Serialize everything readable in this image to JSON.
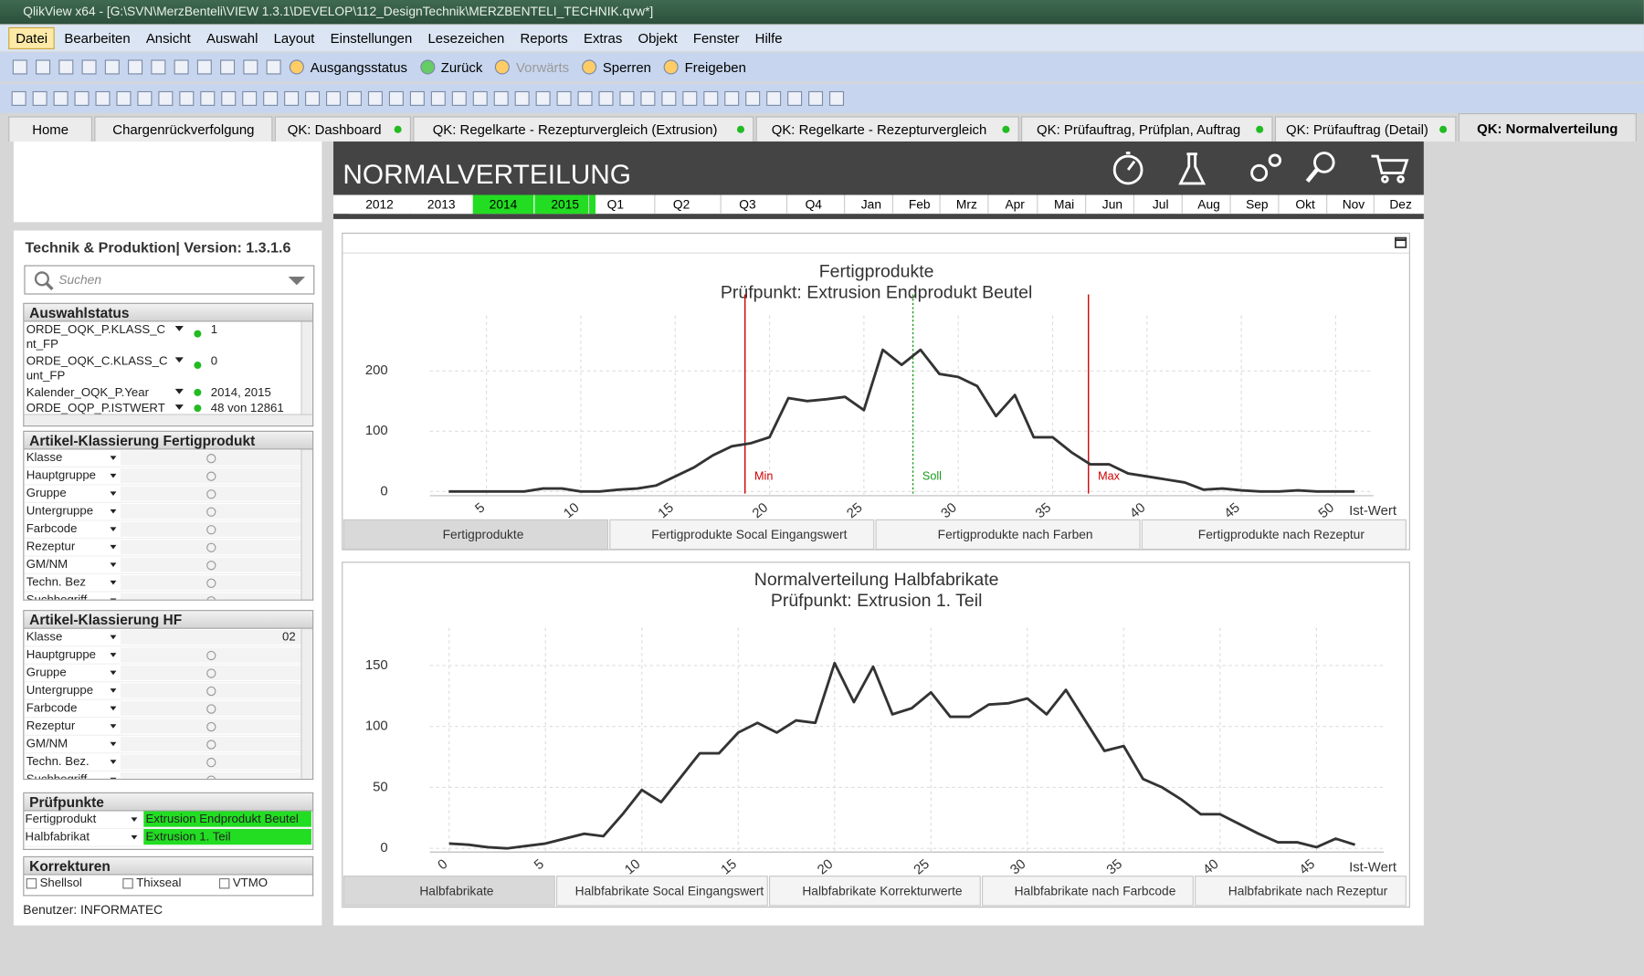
{
  "window_title": "QlikView x64 - [G:\\SVN\\MerzBenteli\\VIEW 1.3.1\\DEVELOP\\112_DesignTechnik\\MERZBENTELI_TECHNIK.qvw*]",
  "menu": [
    "Datei",
    "Bearbeiten",
    "Ansicht",
    "Auswahl",
    "Layout",
    "Einstellungen",
    "Lesezeichen",
    "Reports",
    "Extras",
    "Objekt",
    "Fenster",
    "Hilfe"
  ],
  "toolbar": [
    "Ausgangsstatus",
    "Zurück",
    "Vorwärts",
    "Sperren",
    "Freigeben"
  ],
  "tabs": [
    "Home",
    "Chargenrückverfolgung",
    "QK: Dashboard",
    "QK: Regelkarte - Rezepturvergleich (Extrusion)",
    "QK: Regelkarte - Rezepturvergleich",
    "QK: Prüfauftrag, Prüfplan, Auftrag",
    "QK: Prüfauftrag (Detail)",
    "QK: Normalverteilung"
  ],
  "active_tab": 7,
  "header": {
    "title": "NORMALVERTEILUNG",
    "years": [
      "2012",
      "2013",
      "2014",
      "2015"
    ],
    "selected_years": [
      2,
      3
    ],
    "periods": [
      "Q1",
      "Q2",
      "Q3",
      "Q4",
      "Jan",
      "Feb",
      "Mrz",
      "Apr",
      "Mai",
      "Jun",
      "Jul",
      "Aug",
      "Sep",
      "Okt",
      "Nov",
      "Dez"
    ]
  },
  "sidebar": {
    "title": "Technik & Produktion| Version: 1.3.1.6",
    "search": "Suchen",
    "auswahlstatus": {
      "header": "Auswahlstatus",
      "rows": [
        {
          "field": "ORDE_OQK_P.KLASS_C\nnt_FP",
          "value": "1"
        },
        {
          "field": "ORDE_OQK_C.KLASS_C\nunt_FP",
          "value": "0"
        },
        {
          "field": "Kalender_OQK_P.Year",
          "value": "2014, 2015"
        },
        {
          "field": "ORDE_OQP_P.ISTWERT",
          "value": "48 von 12861"
        }
      ]
    },
    "artikel_fp": {
      "header": "Artikel-Klassierung  Fertigprodukt",
      "rows": [
        {
          "field": "Klasse"
        },
        {
          "field": "Hauptgruppe"
        },
        {
          "field": "Gruppe"
        },
        {
          "field": "Untergruppe"
        },
        {
          "field": "Farbcode"
        },
        {
          "field": "Rezeptur"
        },
        {
          "field": "GM/NM"
        },
        {
          "field": "Techn. Bez"
        },
        {
          "field": "Suchbegriff"
        }
      ]
    },
    "artikel_hf": {
      "header": "Artikel-Klassierung HF",
      "rows": [
        {
          "field": "Klasse",
          "value": "02"
        },
        {
          "field": "Hauptgruppe"
        },
        {
          "field": "Gruppe"
        },
        {
          "field": "Untergruppe"
        },
        {
          "field": "Farbcode"
        },
        {
          "field": "Rezeptur"
        },
        {
          "field": "GM/NM"
        },
        {
          "field": "Techn. Bez."
        },
        {
          "field": "Suchbegriff"
        }
      ]
    },
    "pruefpunkte": {
      "header": "Prüfpunkte",
      "rows": [
        {
          "field": "Fertigprodukt",
          "value": "Extrusion Endprodukt Beutel"
        },
        {
          "field": "Halbfabrikat",
          "value": "Extrusion 1. Teil"
        }
      ]
    },
    "korrekturen": {
      "header": "Korrekturen",
      "options": [
        "Shellsol",
        "Thixseal",
        "VTMO"
      ]
    },
    "user": "Benutzer: INFORMATEC"
  },
  "chart_data": [
    {
      "type": "line",
      "title": "Fertigprodukte",
      "subtitle": "Prüfpunkt: Extrusion Endprodukt Beutel",
      "x_label": "Ist-Wert",
      "color": "#333333",
      "x": [
        3,
        4,
        5,
        6,
        7,
        8,
        9,
        10,
        11,
        12,
        13,
        14,
        15,
        16,
        17,
        18,
        19,
        20,
        21,
        22,
        23,
        24,
        25,
        26,
        27,
        28,
        29,
        30,
        31,
        32,
        33,
        34,
        35,
        36,
        37,
        38,
        39,
        40,
        41,
        42,
        43,
        44,
        45,
        46,
        47,
        48,
        49,
        50,
        51
      ],
      "values": [
        0,
        0,
        0,
        0,
        0,
        5,
        5,
        0,
        0,
        3,
        5,
        10,
        25,
        40,
        60,
        75,
        80,
        90,
        155,
        150,
        153,
        157,
        135,
        235,
        210,
        235,
        195,
        190,
        175,
        125,
        160,
        90,
        90,
        65,
        45,
        45,
        30,
        25,
        20,
        15,
        3,
        5,
        2,
        0,
        0,
        2,
        0,
        0,
        0
      ],
      "xlim": [
        2,
        52
      ],
      "ylim": [
        -7,
        292
      ],
      "xticks": [
        5,
        10,
        15,
        20,
        25,
        30,
        35,
        40,
        45,
        50
      ],
      "yticks": [
        0,
        100,
        200
      ],
      "grid": true,
      "annotations": [
        {
          "label": "Min",
          "x": 18.7,
          "color": "#cc0000"
        },
        {
          "label": "Soll",
          "x": 27.6,
          "color": "#1a9a1a"
        },
        {
          "label": "Max",
          "x": 36.9,
          "color": "#cc0000"
        }
      ],
      "buttons": [
        "Fertigprodukte",
        "Fertigprodukte Socal Eingangswert",
        "Fertigprodukte nach Farben",
        "Fertigprodukte nach Rezeptur"
      ]
    },
    {
      "type": "line",
      "title": "Normalverteilung Halbfabrikate",
      "subtitle": "Prüfpunkt: Extrusion 1. Teil",
      "x_label": "Ist-Wert",
      "color": "#333333",
      "x": [
        0,
        1,
        2,
        3,
        4,
        5,
        6,
        7,
        8,
        9,
        10,
        11,
        12,
        13,
        14,
        15,
        16,
        17,
        18,
        19,
        20,
        21,
        22,
        23,
        24,
        25,
        26,
        27,
        28,
        29,
        30,
        31,
        32,
        33,
        34,
        35,
        36,
        37,
        38,
        39,
        40,
        41,
        42,
        43,
        44,
        45,
        46,
        47
      ],
      "values": [
        4,
        3,
        1,
        0,
        2,
        4,
        8,
        12,
        10,
        28,
        48,
        38,
        58,
        78,
        78,
        95,
        103,
        95,
        105,
        103,
        152,
        120,
        149,
        110,
        115,
        128,
        108,
        108,
        118,
        119,
        123,
        110,
        130,
        105,
        80,
        84,
        57,
        50,
        40,
        28,
        28,
        20,
        12,
        5,
        5,
        1,
        8,
        3
      ],
      "xlim": [
        -1,
        48.5
      ],
      "ylim": [
        -3,
        181
      ],
      "xticks": [
        0,
        5,
        10,
        15,
        20,
        25,
        30,
        35,
        40,
        45
      ],
      "yticks": [
        0,
        50,
        100,
        150
      ],
      "grid": true,
      "buttons": [
        "Halbfabrikate",
        "Halbfabrikate Socal Eingangswert",
        "Halbfabrikate Korrekturwerte",
        "Halbfabrikate nach Farbcode",
        "Halbfabrikate nach Rezeptur"
      ]
    }
  ]
}
